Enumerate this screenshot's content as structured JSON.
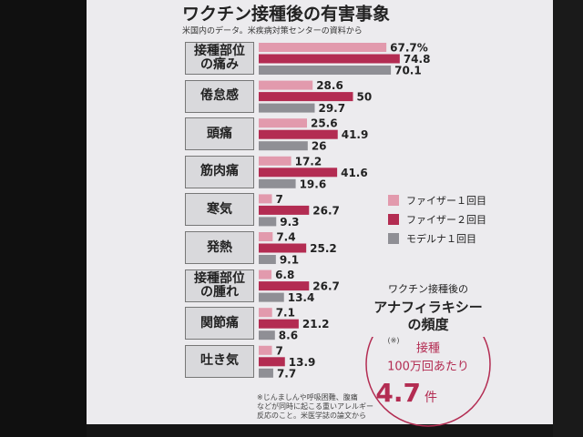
{
  "chart_data": {
    "type": "bar",
    "orientation": "horizontal",
    "title": "ワクチン接種後の有害事象",
    "subtitle": "米国内のデータ。米疾病対策センターの資料から",
    "categories": [
      "接種部位\nの痛み",
      "倦怠感",
      "頭痛",
      "筋肉痛",
      "寒気",
      "発熱",
      "接種部位\nの腫れ",
      "関節痛",
      "吐き気"
    ],
    "series": [
      {
        "name": "ファイザー１回目",
        "color": "#e29aad",
        "values": [
          67.7,
          28.6,
          25.6,
          17.2,
          7,
          7.4,
          6.8,
          7.1,
          7
        ],
        "value_labels": [
          "67.7%",
          "28.6",
          "25.6",
          "17.2",
          "7",
          "7.4",
          "6.8",
          "7.1",
          "7"
        ]
      },
      {
        "name": "ファイザー２回目",
        "color": "#b32c52",
        "values": [
          74.8,
          50,
          41.9,
          41.6,
          26.7,
          25.2,
          26.7,
          21.2,
          13.9
        ]
      },
      {
        "name": "モデルナ１回目",
        "color": "#8f8f95",
        "values": [
          70.1,
          29.7,
          26,
          19.6,
          9.3,
          9.1,
          13.4,
          8.6,
          7.7
        ]
      }
    ],
    "annotation": {
      "title_1": "ワクチン接種後の",
      "title_2": "アナフィラキシー",
      "title_3": "の頻度",
      "note_mark": "(※)",
      "line_1": "接種",
      "line_2": "100万回あたり",
      "value": 4.7,
      "unit": "件"
    },
    "footnote": "※じんましんや呼吸困難、腹痛\nなどが同時に起こる重いアレルギー\n反応のこと。米医学誌の論文から"
  }
}
